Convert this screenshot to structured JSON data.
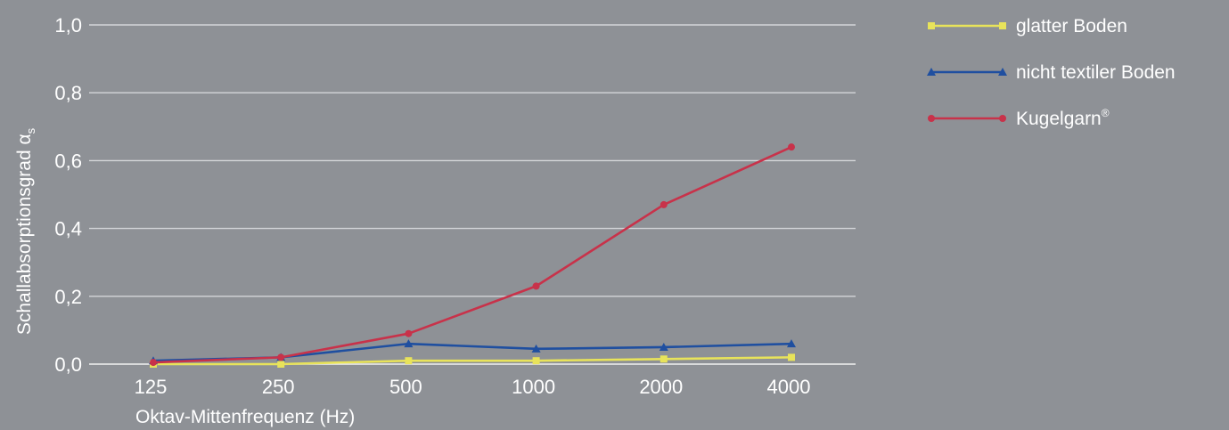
{
  "chart_data": {
    "type": "line",
    "categories": [
      "125",
      "250",
      "500",
      "1000",
      "2000",
      "4000"
    ],
    "xlabel": "Oktav-Mittenfrequenz (Hz)",
    "ylabel": "Schallabsorptionsgrad α",
    "ylabel_sub": "s",
    "ylim": [
      0,
      1.0
    ],
    "yticks": [
      "0,0",
      "0,2",
      "0,4",
      "0,6",
      "0,8",
      "1,0"
    ],
    "grid": true,
    "legend_position": "top-right",
    "series": [
      {
        "name": "glatter Boden",
        "color": "#e8e35a",
        "marker": "square",
        "values": [
          0.0,
          0.0,
          0.01,
          0.01,
          0.015,
          0.02
        ]
      },
      {
        "name": "nicht textiler Boden",
        "color": "#1f4fa0",
        "marker": "triangle",
        "values": [
          0.01,
          0.02,
          0.06,
          0.045,
          0.05,
          0.06
        ]
      },
      {
        "name": "Kugelgarn",
        "name_sup": "®",
        "color": "#c8324a",
        "marker": "circle",
        "values": [
          0.005,
          0.02,
          0.09,
          0.23,
          0.47,
          0.64
        ]
      }
    ]
  }
}
